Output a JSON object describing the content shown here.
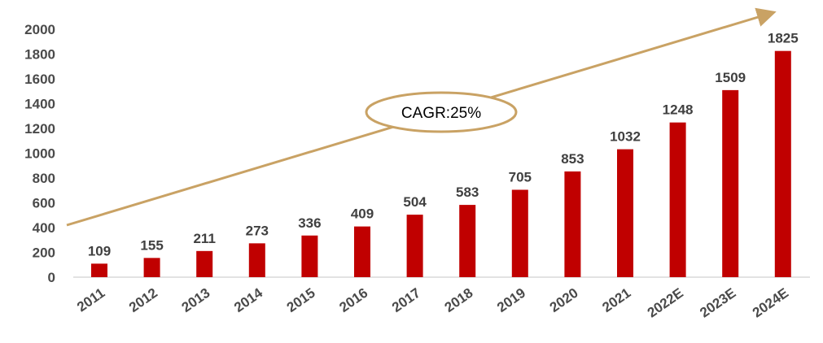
{
  "chart_data": {
    "type": "bar",
    "title": "",
    "xlabel": "",
    "ylabel": "",
    "categories": [
      "2011",
      "2012",
      "2013",
      "2014",
      "2015",
      "2016",
      "2017",
      "2018",
      "2019",
      "2020",
      "2021",
      "2022E",
      "2023E",
      "2024E"
    ],
    "values": [
      109,
      155,
      211,
      273,
      336,
      409,
      504,
      583,
      705,
      853,
      1032,
      1248,
      1509,
      1825
    ],
    "ylim": [
      0,
      2000
    ],
    "yticks": [
      0,
      200,
      400,
      600,
      800,
      1000,
      1200,
      1400,
      1600,
      1800,
      2000
    ],
    "grid": false,
    "legend": "none",
    "data_labels": true,
    "annotation": {
      "text": "CAGR:25%",
      "shape": "ellipse with trend arrow"
    },
    "colors": {
      "bar": "#c00000",
      "arrow": "#c9a264",
      "axis": "#d9d9d9",
      "text": "#404040"
    }
  }
}
